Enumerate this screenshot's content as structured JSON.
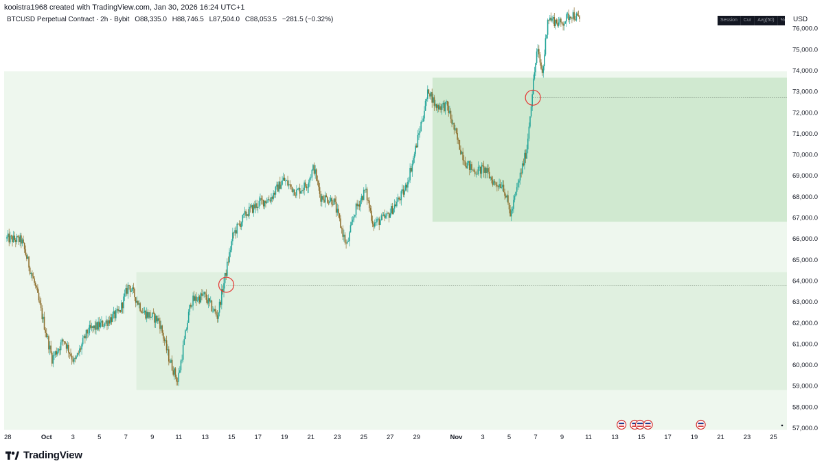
{
  "header": {
    "attribution": "kooistra1968 created with TradingView.com, Jan 30, 2026 16:24 UTC+1",
    "symbol": "BTCUSD Perpetual Contract · 2h · Bybit",
    "open": "O88,335.0",
    "high": "H88,746.5",
    "low": "L87,504.0",
    "close": "C88,053.5",
    "change": "−281.5 (−0.32%)"
  },
  "toolbar": {
    "items": [
      "Session",
      "Cur",
      "Avg(50)",
      "%"
    ]
  },
  "currency": "USD",
  "brand": {
    "name": "TradingView"
  },
  "colors": {
    "up_candle": "#26a69a",
    "down_candle": "#8d6e2c",
    "zone_outer": "#eef7ee",
    "zone_lower": "#e0f0e0",
    "zone_upper": "#d0e9d0",
    "marker_circle": "#e53935",
    "axis_text": "#131722",
    "event_flag": "#d32f2f"
  },
  "chart_data": {
    "type": "candlestick",
    "symbol": "BTCUSD",
    "interval": "2h",
    "ylim": [
      56800,
      77000
    ],
    "y_ticks": [
      57000,
      58000,
      59000,
      60000,
      61000,
      62000,
      63000,
      64000,
      65000,
      66000,
      67000,
      68000,
      69000,
      70000,
      71000,
      72000,
      73000,
      74000,
      75000,
      76000
    ],
    "y_tick_labels": [
      "57,000.0",
      "58,000.0",
      "59,000.0",
      "60,000.0",
      "61,000.0",
      "62,000.0",
      "63,000.0",
      "64,000.0",
      "65,000.0",
      "66,000.0",
      "67,000.0",
      "68,000.0",
      "69,000.0",
      "70,000.0",
      "71,000.0",
      "72,000.0",
      "73,000.0",
      "74,000.0",
      "75,000.0",
      "76,000.0"
    ],
    "x_ticks": [
      {
        "day": 0,
        "label": "28"
      },
      {
        "day": 3,
        "label": "Oct",
        "bold": true
      },
      {
        "day": 5,
        "label": "3"
      },
      {
        "day": 7,
        "label": "5"
      },
      {
        "day": 9,
        "label": "7"
      },
      {
        "day": 11,
        "label": "9"
      },
      {
        "day": 13,
        "label": "11"
      },
      {
        "day": 15,
        "label": "13"
      },
      {
        "day": 17,
        "label": "15"
      },
      {
        "day": 19,
        "label": "17"
      },
      {
        "day": 21,
        "label": "19"
      },
      {
        "day": 23,
        "label": "21"
      },
      {
        "day": 25,
        "label": "23"
      },
      {
        "day": 27,
        "label": "25"
      },
      {
        "day": 29,
        "label": "27"
      },
      {
        "day": 31,
        "label": "29"
      },
      {
        "day": 34,
        "label": "Nov",
        "bold": true
      },
      {
        "day": 36,
        "label": "3"
      },
      {
        "day": 38,
        "label": "5"
      },
      {
        "day": 40,
        "label": "7"
      },
      {
        "day": 42,
        "label": "9"
      },
      {
        "day": 44,
        "label": "11"
      },
      {
        "day": 46,
        "label": "13"
      },
      {
        "day": 48,
        "label": "15"
      },
      {
        "day": 50,
        "label": "17"
      },
      {
        "day": 52,
        "label": "19"
      },
      {
        "day": 54,
        "label": "21"
      },
      {
        "day": 56,
        "label": "23"
      },
      {
        "day": 58,
        "label": "25"
      }
    ],
    "price_path": [
      [
        0,
        66000
      ],
      [
        1.2,
        65900
      ],
      [
        2.2,
        63800
      ],
      [
        3.5,
        60300
      ],
      [
        4.4,
        61200
      ],
      [
        5.2,
        60100
      ],
      [
        6.2,
        61600
      ],
      [
        7.5,
        62000
      ],
      [
        8.6,
        62500
      ],
      [
        9.3,
        63800
      ],
      [
        10.4,
        62500
      ],
      [
        11.6,
        62100
      ],
      [
        12.3,
        60400
      ],
      [
        13.0,
        59200
      ],
      [
        14.0,
        63000
      ],
      [
        15.0,
        63300
      ],
      [
        16.0,
        62300
      ],
      [
        16.6,
        64200
      ],
      [
        17.2,
        66200
      ],
      [
        18.2,
        67200
      ],
      [
        19.2,
        67700
      ],
      [
        20.0,
        67900
      ],
      [
        21.0,
        68800
      ],
      [
        22.0,
        68200
      ],
      [
        22.8,
        68600
      ],
      [
        23.3,
        69400
      ],
      [
        23.8,
        68000
      ],
      [
        24.8,
        67800
      ],
      [
        25.8,
        65600
      ],
      [
        26.4,
        67300
      ],
      [
        27.2,
        68300
      ],
      [
        27.8,
        66700
      ],
      [
        28.8,
        67000
      ],
      [
        30.2,
        68300
      ],
      [
        30.8,
        69700
      ],
      [
        31.4,
        71400
      ],
      [
        32.0,
        73100
      ],
      [
        32.5,
        72300
      ],
      [
        33.4,
        72300
      ],
      [
        34.2,
        70600
      ],
      [
        34.8,
        69600
      ],
      [
        35.4,
        69200
      ],
      [
        36.2,
        69300
      ],
      [
        37.0,
        68600
      ],
      [
        37.6,
        68600
      ],
      [
        38.2,
        67100
      ],
      [
        38.8,
        68700
      ],
      [
        39.4,
        70200
      ],
      [
        39.8,
        72800
      ],
      [
        40.2,
        75000
      ],
      [
        40.6,
        73800
      ],
      [
        41.0,
        76500
      ],
      [
        42.0,
        76200
      ],
      [
        42.8,
        76700
      ],
      [
        43.4,
        76400
      ]
    ],
    "zones": [
      {
        "name": "outer",
        "from_day": 0,
        "to_day": 59.2,
        "low": 56900,
        "high": 73950
      },
      {
        "name": "lower",
        "from_day": 9.8,
        "to_day": 59.2,
        "low": 58800,
        "high": 64400
      },
      {
        "name": "upper",
        "from_day": 32.2,
        "to_day": 59.2,
        "low": 66800,
        "high": 73650
      }
    ],
    "markers": [
      {
        "day": 16.6,
        "price": 63800
      },
      {
        "day": 39.8,
        "price": 72700
      }
    ],
    "dotted_levels": [
      {
        "from_day": 16.6,
        "to_day": 59.2,
        "price": 63750
      },
      {
        "from_day": 39.8,
        "to_day": 59.2,
        "price": 72700
      }
    ],
    "event_flags": [
      46.5,
      47.5,
      47.9,
      48.5,
      52.5
    ]
  }
}
